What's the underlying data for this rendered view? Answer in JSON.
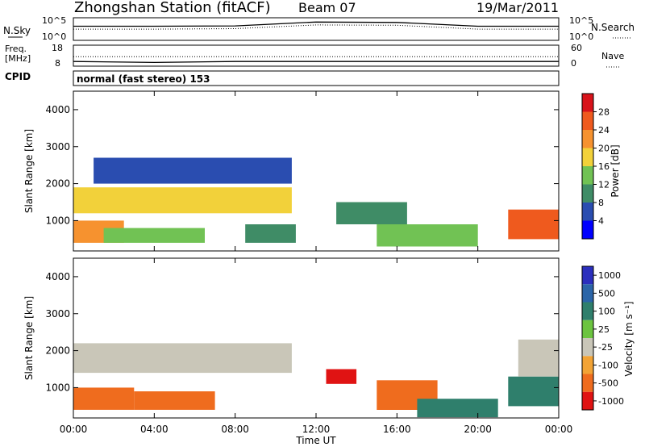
{
  "header": {
    "station": "Zhongshan Station (fitACF)",
    "beam": "Beam 07",
    "date": "19/Mar/2011"
  },
  "noise_panel": {
    "left_label": "N.Sky",
    "right_label": "N.Search",
    "left_ticks": [
      "10^5",
      "10^0"
    ],
    "right_ticks": [
      "10^5",
      "10^0"
    ]
  },
  "freq_panel": {
    "left_label_1": "Freq.",
    "left_label_2": "[MHz]",
    "right_label": "Nave",
    "left_ticks": [
      "18",
      "8"
    ],
    "right_ticks": [
      "60",
      "0"
    ]
  },
  "cpid": {
    "label": "CPID",
    "value": "normal (fast stereo) 153"
  },
  "axes": {
    "ylabel": "Slant Range [km]",
    "xlabel": "Time UT",
    "yticks": [
      "1000",
      "2000",
      "3000",
      "4000"
    ],
    "xticks": [
      "00:00",
      "04:00",
      "08:00",
      "12:00",
      "16:00",
      "20:00",
      "00:00"
    ]
  },
  "power_colorbar": {
    "label": "Power [dB]",
    "ticks": [
      "4",
      "8",
      "12",
      "16",
      "20",
      "24",
      "28"
    ],
    "colors": [
      "#0000ff",
      "#2a4db0",
      "#3f8c66",
      "#71c254",
      "#f2d13a",
      "#f6922f",
      "#ef5a1e",
      "#d8131b"
    ]
  },
  "velocity_colorbar": {
    "label": "Velocity [m s⁻¹]",
    "ticks": [
      "1000",
      "500",
      "100",
      "25",
      "-25",
      "-100",
      "-500",
      "-1000"
    ],
    "colors": [
      "#2b2fbd",
      "#2b65a8",
      "#2f7f6c",
      "#6cc43f",
      "#c9c6b8",
      "#f2a335",
      "#ef6c1e",
      "#e01313"
    ]
  },
  "chart_data": [
    {
      "type": "line",
      "title": "Zhongshan Station (fitACF)",
      "x": [
        "00:00",
        "04:00",
        "08:00",
        "12:00",
        "16:00",
        "20:00",
        "00:00"
      ],
      "series": [
        {
          "name": "N.Sky",
          "values": [
            1500,
            1500,
            1800,
            15000,
            12000,
            1500,
            1500
          ]
        },
        {
          "name": "N.Search",
          "values": [
            300,
            300,
            400,
            3000,
            2500,
            300,
            300
          ]
        }
      ],
      "ylabel": "N.Sky",
      "yscale": "log",
      "ylim": [
        1,
        100000
      ]
    },
    {
      "type": "line",
      "x": [
        "00:00",
        "04:00",
        "08:00",
        "12:00",
        "16:00",
        "20:00",
        "00:00"
      ],
      "series": [
        {
          "name": "Freq.",
          "values": [
            10,
            9.5,
            10,
            10,
            10,
            10,
            10
          ]
        },
        {
          "name": "Nave",
          "values": [
            27,
            27,
            27,
            27,
            27,
            27,
            27
          ]
        }
      ],
      "ylabel": "Freq. [MHz]",
      "ylim": [
        8,
        18
      ]
    },
    {
      "type": "heatmap",
      "xlabel": "Time UT",
      "ylabel": "Slant Range [km]",
      "xlim": [
        0,
        24
      ],
      "ylim": [
        180,
        4500
      ],
      "colorbar_label": "Power [dB]",
      "clim": [
        0,
        32
      ],
      "grid": false,
      "regions": [
        {
          "t": [
            0.0,
            10.8
          ],
          "r": [
            1200,
            1900
          ],
          "value": 18
        },
        {
          "t": [
            0.0,
            2.5
          ],
          "r": [
            400,
            1000
          ],
          "value": 22
        },
        {
          "t": [
            1.5,
            6.5
          ],
          "r": [
            400,
            800
          ],
          "value": 12
        },
        {
          "t": [
            8.5,
            11.0
          ],
          "r": [
            400,
            900
          ],
          "value": 10
        },
        {
          "t": [
            13.0,
            16.5
          ],
          "r": [
            900,
            1500
          ],
          "value": 8
        },
        {
          "t": [
            15.0,
            20.0
          ],
          "r": [
            300,
            900
          ],
          "value": 14
        },
        {
          "t": [
            21.5,
            24.0
          ],
          "r": [
            500,
            1300
          ],
          "value": 24
        },
        {
          "t": [
            1.0,
            10.8
          ],
          "r": [
            2000,
            2700
          ],
          "value": 6
        }
      ]
    },
    {
      "type": "heatmap",
      "xlabel": "Time UT",
      "ylabel": "Slant Range [km]",
      "xlim": [
        0,
        24
      ],
      "ylim": [
        180,
        4500
      ],
      "colorbar_label": "Velocity [m s⁻¹]",
      "clim": [
        -1000,
        1000
      ],
      "grid": false,
      "regions": [
        {
          "t": [
            0.0,
            10.8
          ],
          "r": [
            1400,
            2200
          ],
          "value": 0
        },
        {
          "t": [
            0.0,
            3.0
          ],
          "r": [
            400,
            1000
          ],
          "value": -400
        },
        {
          "t": [
            3.0,
            7.0
          ],
          "r": [
            400,
            900
          ],
          "value": -300
        },
        {
          "t": [
            12.5,
            14.0
          ],
          "r": [
            1100,
            1500
          ],
          "value": -700
        },
        {
          "t": [
            15.0,
            18.0
          ],
          "r": [
            400,
            1200
          ],
          "value": -500
        },
        {
          "t": [
            17.0,
            21.0
          ],
          "r": [
            200,
            700
          ],
          "value": 100
        },
        {
          "t": [
            21.5,
            24.0
          ],
          "r": [
            500,
            1300
          ],
          "value": 300
        },
        {
          "t": [
            22.0,
            24.0
          ],
          "r": [
            1300,
            2300
          ],
          "value": 0
        }
      ]
    }
  ]
}
